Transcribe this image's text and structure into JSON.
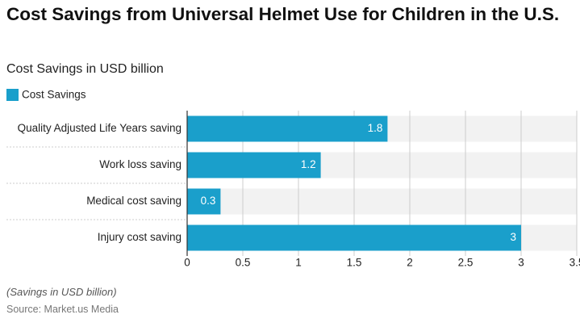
{
  "chart_data": {
    "type": "hbar",
    "title": "Cost Savings from Universal Helmet Use for Children in the U.S.",
    "subtitle": "Cost Savings in USD billion",
    "categories": [
      "Quality Adjusted Life Years saving",
      "Work loss saving",
      "Medical cost saving",
      "Injury cost saving"
    ],
    "series": [
      {
        "name": "Cost Savings",
        "color": "#1a9fcb",
        "values": [
          1.8,
          1.2,
          0.3,
          3
        ]
      }
    ],
    "xlim": [
      0,
      3.5
    ],
    "xticks": [
      0,
      0.5,
      1,
      1.5,
      2,
      2.5,
      3,
      3.5
    ],
    "grid": true,
    "legend": "top-left",
    "note": "(Savings in USD billion)",
    "source": "Source: Market.us Media"
  }
}
